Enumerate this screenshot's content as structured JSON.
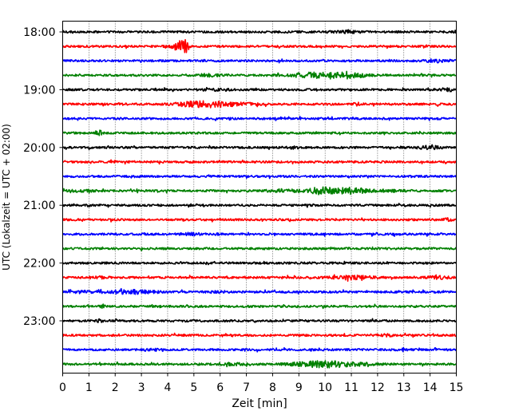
{
  "chart_data": {
    "type": "line",
    "xlabel": "Zeit  [min]",
    "ylabel": "UTC (Lokalzeit = UTC + 02:00)",
    "xlim": [
      0,
      15
    ],
    "x_ticks": [
      "0",
      "1",
      "2",
      "3",
      "4",
      "5",
      "6",
      "7",
      "8",
      "9",
      "10",
      "11",
      "12",
      "13",
      "14",
      "15"
    ],
    "y_tick_labels": [
      "18:00",
      "19:00",
      "20:00",
      "21:00",
      "22:00",
      "23:00"
    ],
    "trace_colors": [
      "#000000",
      "#ff0000",
      "#0000ff",
      "#008000"
    ],
    "grid": "vertical-dotted",
    "traces": [
      {
        "start": "18:00",
        "bursts": [
          [
            10.8,
            0.4,
            0.6
          ]
        ]
      },
      {
        "start": "18:15",
        "bursts": [
          [
            4.4,
            3.0,
            0.2
          ],
          [
            4.65,
            3.5,
            0.15
          ]
        ]
      },
      {
        "start": "18:30",
        "bursts": [
          [
            14.2,
            0.6,
            0.4
          ]
        ]
      },
      {
        "start": "18:45",
        "bursts": [
          [
            9.5,
            1.4,
            0.8
          ],
          [
            10.9,
            1.6,
            0.6
          ],
          [
            5.5,
            0.5,
            0.6
          ]
        ]
      },
      {
        "start": "19:00",
        "bursts": [
          [
            14.7,
            0.8,
            0.3
          ],
          [
            5.8,
            0.4,
            0.5
          ]
        ]
      },
      {
        "start": "19:15",
        "bursts": [
          [
            4.7,
            1.0,
            0.6
          ],
          [
            5.5,
            1.2,
            0.5
          ],
          [
            6.5,
            0.8,
            0.8
          ],
          [
            11.2,
            0.6,
            0.2
          ]
        ]
      },
      {
        "start": "19:30",
        "bursts": []
      },
      {
        "start": "19:45",
        "bursts": [
          [
            1.4,
            1.2,
            0.1
          ]
        ]
      },
      {
        "start": "20:00",
        "bursts": [
          [
            14.0,
            0.7,
            0.5
          ],
          [
            8.8,
            0.5,
            0.2
          ]
        ]
      },
      {
        "start": "20:15",
        "bursts": []
      },
      {
        "start": "20:30",
        "bursts": []
      },
      {
        "start": "20:45",
        "bursts": [
          [
            8.5,
            0.6,
            0.6
          ],
          [
            9.8,
            1.4,
            0.4
          ],
          [
            10.5,
            0.9,
            0.8
          ],
          [
            11.1,
            1.2,
            0.4
          ],
          [
            12.3,
            0.4,
            0.8
          ],
          [
            0.8,
            0.4,
            0.5
          ]
        ]
      },
      {
        "start": "21:00",
        "bursts": []
      },
      {
        "start": "21:15",
        "bursts": [
          [
            14.7,
            0.5,
            0.3
          ]
        ]
      },
      {
        "start": "21:30",
        "bursts": [
          [
            4.9,
            0.5,
            0.4
          ],
          [
            5.9,
            0.6,
            0.1
          ]
        ]
      },
      {
        "start": "21:45",
        "bursts": []
      },
      {
        "start": "22:00",
        "bursts": []
      },
      {
        "start": "22:15",
        "bursts": [
          [
            11.0,
            0.9,
            0.8
          ],
          [
            14.3,
            0.6,
            0.4
          ],
          [
            1.3,
            0.4,
            0.4
          ]
        ]
      },
      {
        "start": "22:30",
        "bursts": [
          [
            2.5,
            0.9,
            1.0
          ],
          [
            0.7,
            0.4,
            0.4
          ],
          [
            6.0,
            0.3,
            0.5
          ]
        ]
      },
      {
        "start": "22:45",
        "bursts": [
          [
            1.5,
            0.9,
            0.1
          ]
        ]
      },
      {
        "start": "23:00",
        "bursts": [
          [
            1.4,
            0.7,
            0.1
          ]
        ]
      },
      {
        "start": "23:15",
        "bursts": [
          [
            12.3,
            0.4,
            0.3
          ]
        ]
      },
      {
        "start": "23:30",
        "bursts": [
          [
            13.0,
            0.6,
            0.1
          ],
          [
            3.3,
            0.4,
            0.3
          ]
        ]
      },
      {
        "start": "23:45",
        "bursts": [
          [
            9.7,
            1.4,
            0.9
          ],
          [
            10.6,
            0.7,
            0.6
          ],
          [
            6.5,
            0.4,
            0.5
          ],
          [
            11.5,
            0.5,
            0.5
          ]
        ]
      }
    ]
  }
}
